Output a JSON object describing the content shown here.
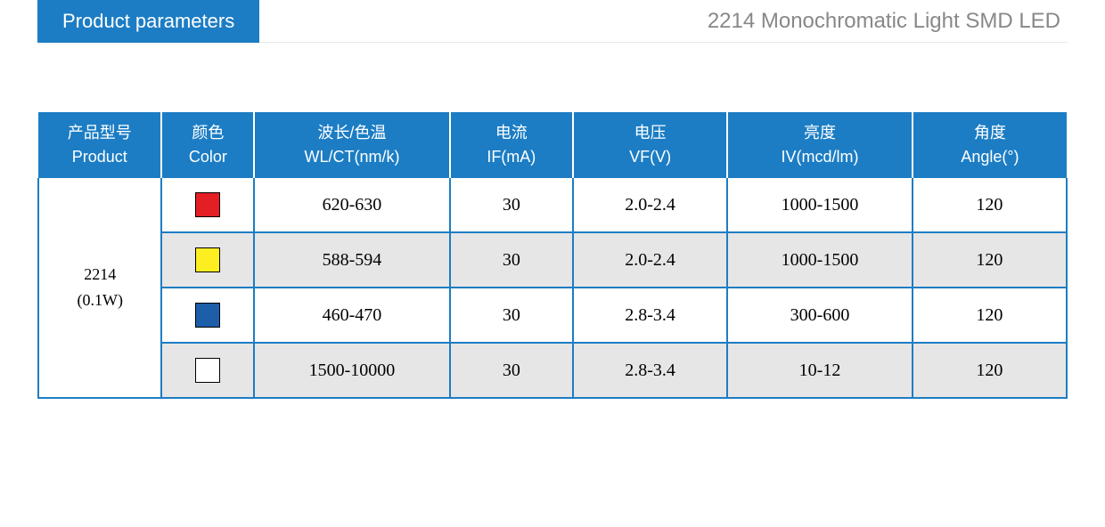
{
  "header": {
    "tab_label": "Product parameters",
    "subtitle": "2214 Monochromatic Light SMD LED"
  },
  "table": {
    "columns": [
      {
        "line1": "产品型号",
        "line2": "Product"
      },
      {
        "line1": "颜色",
        "line2": "Color"
      },
      {
        "line1": "波长/色温",
        "line2": "WL/CT(nm/k)"
      },
      {
        "line1": "电流",
        "line2": "IF(mA)"
      },
      {
        "line1": "电压",
        "line2": "VF(V)"
      },
      {
        "line1": "亮度",
        "line2": "IV(mcd/lm)"
      },
      {
        "line1": "角度",
        "line2": "Angle(°)"
      }
    ],
    "product": {
      "line1": "2214",
      "line2": "(0.1W)"
    },
    "rows": [
      {
        "color": "#e31e24",
        "wavelength": "620-630",
        "current": "30",
        "voltage": "2.0-2.4",
        "brightness": "1000-1500",
        "angle": "120",
        "alt": false
      },
      {
        "color": "#fcee21",
        "wavelength": "588-594",
        "current": "30",
        "voltage": "2.0-2.4",
        "brightness": "1000-1500",
        "angle": "120",
        "alt": true
      },
      {
        "color": "#1c5ea8",
        "wavelength": "460-470",
        "current": "30",
        "voltage": "2.8-3.4",
        "brightness": "300-600",
        "angle": "120",
        "alt": false
      },
      {
        "color": "#ffffff",
        "wavelength": "1500-10000",
        "current": "30",
        "voltage": "2.8-3.4",
        "brightness": "10-12",
        "angle": "120",
        "alt": true
      }
    ]
  },
  "styling": {
    "header_bg": "#1c7dc4",
    "header_text": "#ffffff",
    "subtitle_color": "#888888",
    "border_color": "#1c7dc4",
    "alt_row_bg": "#e6e6e6",
    "body_bg": "#ffffff",
    "text_color": "#000000"
  }
}
